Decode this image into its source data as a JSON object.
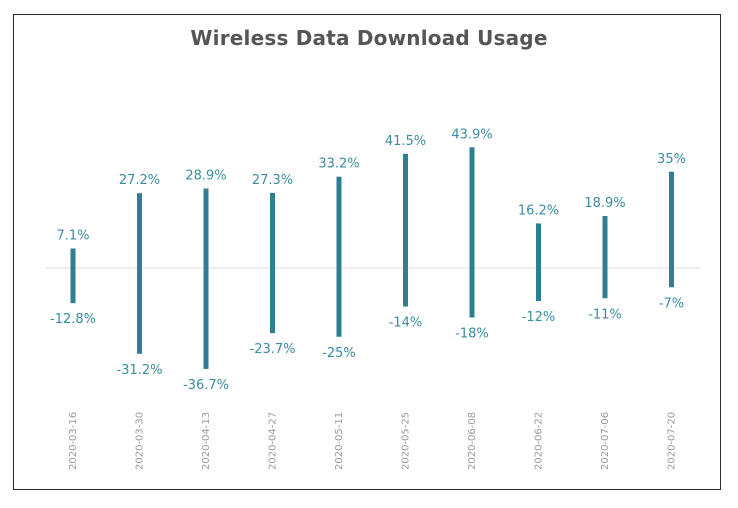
{
  "chart_data": {
    "type": "bar",
    "title": "Wireless Data Download Usage",
    "xlabel": "",
    "ylabel": "",
    "categories": [
      "2020-03-16",
      "2020-03-30",
      "2020-04-13",
      "2020-04-27",
      "2020-05-11",
      "2020-05-25",
      "2020-06-08",
      "2020-06-22",
      "2020-07-06",
      "2020-07-20"
    ],
    "series": [
      {
        "values": [
          7.1,
          27.2,
          28.9,
          27.3,
          33.2,
          41.5,
          43.9,
          16.2,
          18.9,
          35
        ],
        "labels": [
          "7.1%",
          "27.2%",
          "28.9%",
          "27.3%",
          "33.2%",
          "41.5%",
          "43.9%",
          "16.2%",
          "18.9%",
          "35%"
        ]
      },
      {
        "values": [
          -12.8,
          -31.2,
          -36.7,
          -23.7,
          -25,
          -14,
          -18,
          -12,
          -11,
          -7
        ],
        "labels": [
          "-12.8%",
          "-31.2%",
          "-36.7%",
          "-23.7%",
          "-25%",
          "-14%",
          "-18%",
          "-12%",
          "-11%",
          "-7%"
        ]
      }
    ],
    "ylim": [
      -36.7,
      43.9
    ],
    "grid": false,
    "colors": {
      "bar": "#2f7f93",
      "label": "#3a8ca1",
      "tick": "#9a9a9a",
      "baseline": "#dddddd",
      "title": "#555555"
    }
  }
}
